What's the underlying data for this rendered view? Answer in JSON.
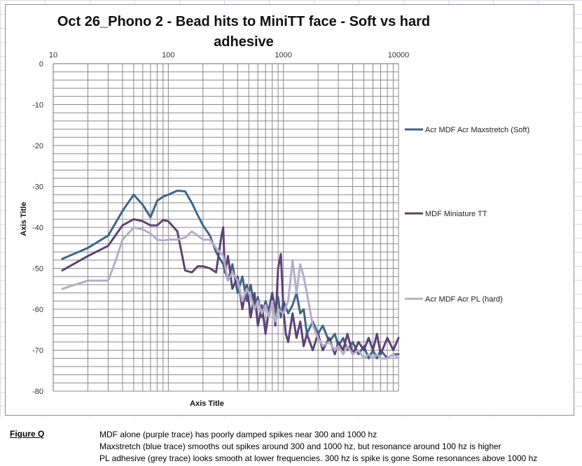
{
  "chart_data": {
    "type": "line",
    "title": "Oct 26_Phono 2 - Bead hits to MiniTT face -  Soft vs hard adhesive",
    "xlabel": "Axis Title",
    "ylabel": "Axis Title",
    "xscale": "log",
    "xlim": [
      10,
      10000
    ],
    "ylim": [
      -80,
      0
    ],
    "x_ticks": [
      "10",
      "100",
      "1000",
      "10000"
    ],
    "y_ticks": [
      "0",
      "-10",
      "-20",
      "-30",
      "-40",
      "-50",
      "-60",
      "-70",
      "-80"
    ],
    "grid": true,
    "legend_position": "right",
    "series": [
      {
        "name": "Acr MDF Acr Maxstretch (Soft)",
        "color": "#3d6688",
        "x": [
          12,
          20,
          30,
          40,
          50,
          60,
          70,
          80,
          90,
          100,
          120,
          140,
          160,
          180,
          200,
          230,
          260,
          300,
          330,
          360,
          400,
          440,
          480,
          520,
          560,
          600,
          650,
          700,
          750,
          800,
          850,
          900,
          950,
          1000,
          1100,
          1200,
          1300,
          1400,
          1500,
          1600,
          1800,
          2000,
          2200,
          2500,
          2800,
          3000,
          3300,
          3600,
          4000,
          4500,
          5000,
          5500,
          6000,
          6500,
          7000,
          8000,
          9000,
          10000
        ],
        "y": [
          -47.7,
          -45,
          -42,
          -36,
          -32,
          -34.5,
          -37.5,
          -33.5,
          -32.5,
          -32,
          -31,
          -31.2,
          -34,
          -37,
          -39.5,
          -42,
          -46,
          -49,
          -53,
          -49,
          -56,
          -52,
          -58,
          -54,
          -60,
          -57,
          -62,
          -58,
          -61,
          -56,
          -60,
          -57,
          -62,
          -58,
          -61,
          -59,
          -56,
          -61,
          -60,
          -66,
          -63,
          -66,
          -64,
          -68,
          -66,
          -69,
          -67,
          -70,
          -68,
          -71,
          -69,
          -72,
          -70,
          -72,
          -70,
          -72,
          -71,
          -71
        ]
      },
      {
        "name": "MDF Miniature TT",
        "color": "#5e4275",
        "x": [
          12,
          20,
          30,
          40,
          50,
          60,
          70,
          80,
          90,
          100,
          120,
          140,
          160,
          180,
          200,
          230,
          260,
          290,
          300,
          310,
          330,
          360,
          400,
          440,
          480,
          520,
          560,
          600,
          650,
          700,
          750,
          800,
          850,
          900,
          950,
          1000,
          1050,
          1100,
          1200,
          1300,
          1400,
          1500,
          1600,
          1800,
          2000,
          2200,
          2500,
          2800,
          3000,
          3300,
          3600,
          4000,
          4500,
          5000,
          5500,
          6000,
          6500,
          7000,
          8000,
          9000,
          10000
        ],
        "y": [
          -50.5,
          -47,
          -44.5,
          -39.5,
          -38,
          -38.5,
          -39.5,
          -39.5,
          -38.2,
          -38.5,
          -41,
          -50.5,
          -51,
          -49.5,
          -49.5,
          -50,
          -51,
          -42,
          -40,
          -51,
          -47,
          -55,
          -52,
          -60,
          -54,
          -62,
          -56,
          -64,
          -59,
          -66,
          -60,
          -56,
          -64,
          -50,
          -46.5,
          -60,
          -66,
          -68,
          -61,
          -67,
          -63,
          -69,
          -66,
          -70,
          -66,
          -70,
          -67,
          -71,
          -68,
          -70,
          -66,
          -71,
          -68,
          -70,
          -67,
          -70,
          -66,
          -71,
          -67,
          -70,
          -67
        ]
      },
      {
        "name": "Acr MDF Acr PL (hard)",
        "color": "#b4aecb",
        "x": [
          12,
          20,
          25,
          30,
          35,
          40,
          50,
          60,
          70,
          80,
          90,
          100,
          120,
          140,
          160,
          180,
          200,
          230,
          260,
          300,
          330,
          360,
          400,
          440,
          480,
          520,
          560,
          600,
          650,
          700,
          750,
          800,
          850,
          900,
          1000,
          1100,
          1200,
          1300,
          1400,
          1500,
          1600,
          1800,
          2000,
          2200,
          2500,
          2800,
          3000,
          3300,
          3600,
          4000,
          4500,
          5000,
          5500,
          6000,
          6500,
          7000,
          8000,
          9000,
          10000
        ],
        "y": [
          -55,
          -53,
          -53,
          -53,
          -48,
          -43,
          -40,
          -40.5,
          -41.5,
          -43,
          -43.2,
          -43,
          -43,
          -42.5,
          -41,
          -42,
          -43,
          -43,
          -45,
          -47,
          -53,
          -51,
          -53,
          -58,
          -55,
          -57,
          -60,
          -58,
          -61,
          -59,
          -62,
          -58,
          -63,
          -60,
          -61,
          -58,
          -48,
          -56,
          -49,
          -52,
          -56,
          -64,
          -67,
          -69,
          -68,
          -70,
          -69,
          -71,
          -69,
          -71,
          -70,
          -72,
          -71,
          -72,
          -71,
          -72,
          -72,
          -71,
          -72
        ]
      }
    ]
  },
  "notes": {
    "caption": "Figure Q",
    "lines": [
      "MDF alone (purple trace) has poorly damped spikes near 300 and 1000 hz",
      "Maxstretch (blue trace) smooths out spikes around 300 and 1000 hz, but resonance around 100 hz is higher",
      "PL adhesive (grey trace) looks smooth at lower frequencies. 300 hz is spike is gone Some resonances above 1000 hz"
    ]
  }
}
